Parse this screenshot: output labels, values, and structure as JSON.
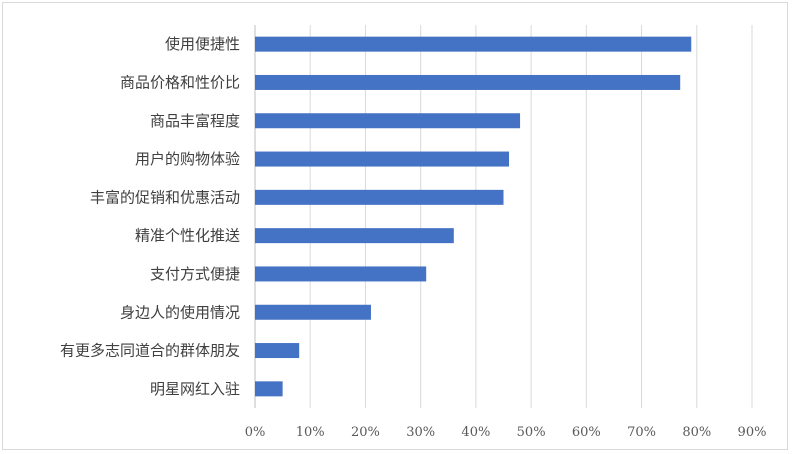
{
  "chart_data": {
    "type": "bar",
    "orientation": "horizontal",
    "title": "",
    "xlabel": "",
    "ylabel": "",
    "categories": [
      "使用便捷性",
      "商品价格和性价比",
      "商品丰富程度",
      "用户的购物体验",
      "丰富的促销和优惠活动",
      "精准个性化推送",
      "支付方式便捷",
      "身边人的使用情况",
      "有更多志同道合的群体朋友",
      "明星网红入驻"
    ],
    "values": [
      79,
      77,
      48,
      46,
      45,
      36,
      31,
      21,
      8,
      5
    ],
    "xlim": [
      0,
      90
    ],
    "ticks": [
      "0%",
      "10%",
      "20%",
      "30%",
      "40%",
      "50%",
      "60%",
      "70%",
      "80%",
      "90%"
    ],
    "tick_values": [
      0,
      10,
      20,
      30,
      40,
      50,
      60,
      70,
      80,
      90
    ],
    "grid": true,
    "bar_color": "#4472c4",
    "grid_color": "#d9d9d9"
  }
}
